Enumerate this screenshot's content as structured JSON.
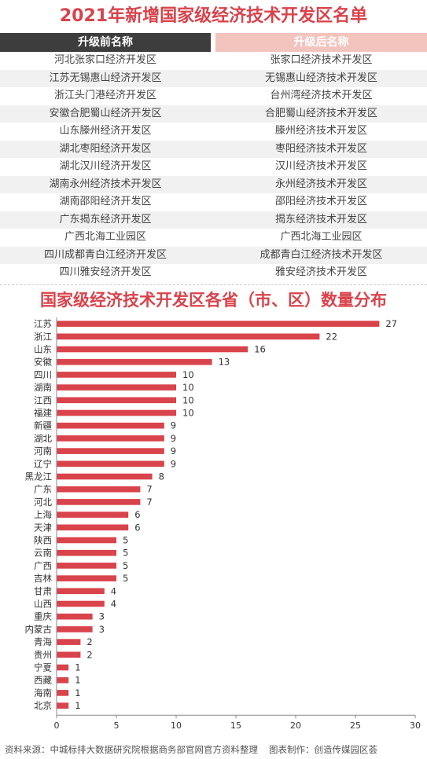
{
  "page_title": "2021年新增国家级经济技术开发区名单",
  "table": {
    "header_before": "升级前名称",
    "header_after": "升级后名称",
    "rows": [
      {
        "before": "河北张家口经济开发区",
        "after": "张家口经济技术开发区"
      },
      {
        "before": "江苏无锡惠山经济开发区",
        "after": "无锡惠山经济技术开发区"
      },
      {
        "before": "浙江头门港经济开发区",
        "after": "台州湾经济技术开发区"
      },
      {
        "before": "安徽合肥蜀山经济开发区",
        "after": "合肥蜀山经济技术开发区"
      },
      {
        "before": "山东滕州经济开发区",
        "after": "滕州经济技术开发区"
      },
      {
        "before": "湖北枣阳经济开发区",
        "after": "枣阳经济技术开发区"
      },
      {
        "before": "湖北汉川经济开发区",
        "after": "汉川经济技术开发区"
      },
      {
        "before": "湖南永州经济技术开发区",
        "after": "永州经济技术开发区"
      },
      {
        "before": "湖南邵阳经济开发区",
        "after": "邵阳经济技术开发区"
      },
      {
        "before": "广东揭东经济开发区",
        "after": "揭东经济技术开发区"
      },
      {
        "before": "广西北海工业园区",
        "after": "广西北海工业园区"
      },
      {
        "before": "四川成都青白江经济开发区",
        "after": "成都青白江经济技术开发区"
      },
      {
        "before": "四川雅安经济开发区",
        "after": "雅安经济技术开发区"
      }
    ]
  },
  "chart_title": "国家级经济技术开发区各省（市、区）数量分布",
  "chart_data": {
    "type": "bar",
    "orientation": "horizontal",
    "title": "国家级经济技术开发区各省（市、区）数量分布",
    "categories": [
      "江苏",
      "浙江",
      "山东",
      "安徽",
      "四川",
      "湖南",
      "江西",
      "福建",
      "新疆",
      "湖北",
      "河南",
      "辽宁",
      "黑龙江",
      "广东",
      "河北",
      "上海",
      "天津",
      "陕西",
      "云南",
      "广西",
      "吉林",
      "甘肃",
      "山西",
      "重庆",
      "内蒙古",
      "青海",
      "贵州",
      "宁夏",
      "西藏",
      "海南",
      "北京"
    ],
    "values": [
      27,
      22,
      16,
      13,
      10,
      10,
      10,
      10,
      9,
      9,
      9,
      9,
      8,
      7,
      7,
      6,
      6,
      5,
      5,
      5,
      5,
      4,
      4,
      3,
      3,
      2,
      2,
      1,
      1,
      1,
      1
    ],
    "xlim": [
      0,
      30
    ],
    "xticks": [
      0,
      5,
      10,
      15,
      20,
      25,
      30
    ],
    "grid": false,
    "bar_color": "#d9434b"
  },
  "footer": {
    "source": "资料来源：中城标排大数据研究院根据商务部官网官方资料整理",
    "maker": "图表制作：创造传媒园区荟"
  }
}
